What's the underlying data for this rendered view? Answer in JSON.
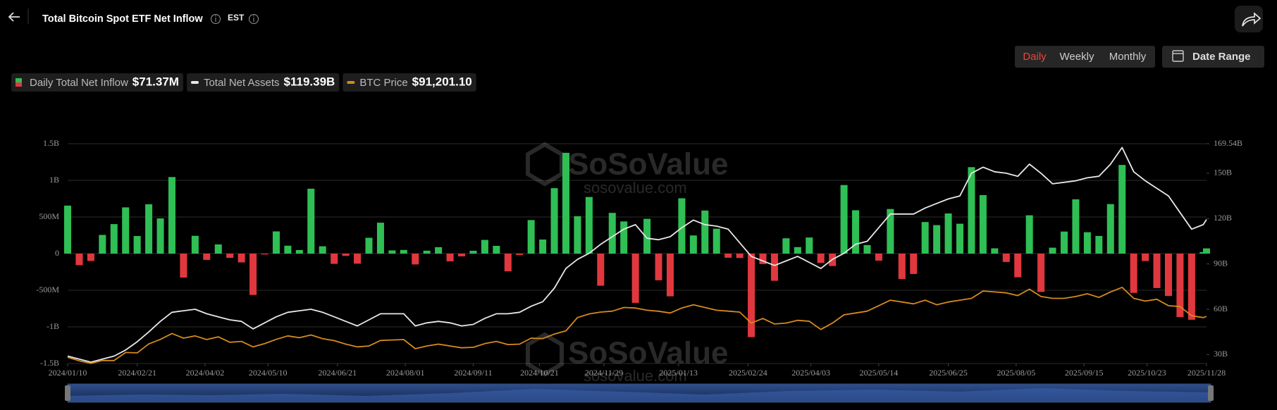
{
  "header": {
    "title": "Total Bitcoin Spot ETF Net Inflow",
    "timezone": "EST"
  },
  "controls": {
    "periods": [
      "Daily",
      "Weekly",
      "Monthly"
    ],
    "active_period": 0,
    "date_range": "Date Range"
  },
  "chart_data": {
    "type": "combo",
    "watermark": [
      "SoSoValue",
      "sosovalue.com"
    ],
    "x": [
      "2024/01/10",
      "2024/01/17",
      "2024/01/24",
      "2024/01/31",
      "2024/02/07",
      "2024/02/14",
      "2024/02/21",
      "2024/02/28",
      "2024/03/06",
      "2024/03/13",
      "2024/03/20",
      "2024/03/27",
      "2024/04/03",
      "2024/04/10",
      "2024/04/17",
      "2024/04/24",
      "2024/05/01",
      "2024/05/08",
      "2024/05/15",
      "2024/05/22",
      "2024/05/29",
      "2024/06/05",
      "2024/06/12",
      "2024/06/19",
      "2024/06/26",
      "2024/07/03",
      "2024/07/10",
      "2024/07/17",
      "2024/07/24",
      "2024/07/31",
      "2024/08/07",
      "2024/08/14",
      "2024/08/21",
      "2024/08/28",
      "2024/09/04",
      "2024/09/11",
      "2024/09/18",
      "2024/09/25",
      "2024/10/02",
      "2024/10/09",
      "2024/10/16",
      "2024/10/23",
      "2024/10/30",
      "2024/11/06",
      "2024/11/13",
      "2024/11/20",
      "2024/11/27",
      "2024/12/04",
      "2024/12/11",
      "2024/12/18",
      "2024/12/25",
      "2025/01/01",
      "2025/01/08",
      "2025/01/15",
      "2025/01/22",
      "2025/01/29",
      "2025/02/05",
      "2025/02/12",
      "2025/02/19",
      "2025/02/26",
      "2025/03/05",
      "2025/03/12",
      "2025/03/19",
      "2025/03/26",
      "2025/04/02",
      "2025/04/09",
      "2025/04/16",
      "2025/04/23",
      "2025/04/30",
      "2025/05/07",
      "2025/05/14",
      "2025/05/21",
      "2025/05/28",
      "2025/06/04",
      "2025/06/11",
      "2025/06/18",
      "2025/06/25",
      "2025/07/02",
      "2025/07/09",
      "2025/07/16",
      "2025/07/23",
      "2025/07/30",
      "2025/08/06",
      "2025/08/13",
      "2025/08/20",
      "2025/08/27",
      "2025/09/03",
      "2025/09/10",
      "2025/09/17",
      "2025/09/24",
      "2025/10/01",
      "2025/10/08",
      "2025/10/15",
      "2025/10/22",
      "2025/10/29",
      "2025/11/05",
      "2025/11/12",
      "2025/11/19",
      "2025/11/26",
      "2025/11/28"
    ],
    "xlim": [
      "2024/01/10",
      "2025/11/28"
    ],
    "xticks": [
      "2024/01/10",
      "2024/02/21",
      "2024/04/02",
      "2024/05/10",
      "2024/06/21",
      "2024/08/01",
      "2024/09/11",
      "2024/10/21",
      "2024/11/29",
      "2025/01/13",
      "2025/02/24",
      "2025/04/03",
      "2025/05/14",
      "2025/06/25",
      "2025/08/05",
      "2025/09/15",
      "2025/10/23",
      "2025/11/28"
    ],
    "ylim": [
      -1500,
      1500
    ],
    "yticks": [
      {
        "value": 1500,
        "label": "1.5B"
      },
      {
        "value": 1000,
        "label": "1B"
      },
      {
        "value": 500,
        "label": "500M"
      },
      0,
      {
        "value": -500,
        "label": "-500M"
      },
      {
        "value": -1000,
        "label": "-1B"
      },
      {
        "value": -1500,
        "label": "-1.5B"
      }
    ],
    "y2lim": [
      24.11,
      169.54
    ],
    "y2ticks": [
      {
        "value": 169.54,
        "label": "169.54B"
      },
      {
        "value": 150,
        "label": "150B"
      },
      {
        "value": 120,
        "label": "120B"
      },
      {
        "value": 90,
        "label": "90B"
      },
      {
        "value": 60,
        "label": "60B"
      },
      {
        "value": 30,
        "label": "30B"
      }
    ],
    "y3lim": [
      39800,
      280000
    ],
    "grid": true,
    "series": [
      {
        "name": "Daily Total Net Inflow",
        "type": "bar",
        "color": "#2fbf55",
        "negative_color": "#e0383e",
        "current_label": "$71.37M",
        "values": [
          655,
          -158,
          -100,
          255,
          403,
          631,
          240,
          673,
          480,
          1045,
          -327,
          243,
          -86,
          125,
          -58,
          -120,
          -564,
          -12,
          303,
          108,
          49,
          886,
          100,
          -140,
          -31,
          -137,
          216,
          422,
          44,
          50,
          -148,
          40,
          88,
          -105,
          -37,
          39,
          187,
          106,
          -242,
          -18,
          458,
          192,
          893,
          1376,
          510,
          773,
          -438,
          556,
          439,
          -672,
          475,
          -364,
          -583,
          755,
          248,
          588,
          340,
          -56,
          -60,
          -1140,
          -143,
          -371,
          209,
          89,
          220,
          -127,
          -170,
          936,
          592,
          117,
          -96,
          609,
          -346,
          -278,
          431,
          389,
          548,
          408,
          1180,
          799,
          72,
          -114,
          -323,
          523,
          -523,
          81,
          301,
          741,
          292,
          241,
          676,
          1210,
          -536,
          -101,
          -470,
          -578,
          -866,
          -903,
          21,
          71.37
        ]
      },
      {
        "name": "Total Net Assets",
        "type": "line",
        "axis": "y2",
        "color": "#e8e8e8",
        "current_label": "$119.39B",
        "values": [
          29,
          27,
          25,
          27,
          29,
          33,
          38.5,
          45,
          52,
          58,
          59,
          60,
          57,
          55,
          53,
          52,
          47,
          51,
          55,
          58,
          59,
          60,
          58,
          55,
          52,
          49,
          53,
          57,
          57,
          57,
          49,
          51,
          52,
          51,
          49,
          50,
          54,
          57,
          57,
          58,
          62,
          65,
          74,
          87,
          93,
          97,
          103,
          108,
          113,
          116,
          107,
          106,
          108,
          114,
          119,
          116,
          115,
          113,
          104,
          95,
          92,
          89,
          92,
          95,
          91,
          87,
          93,
          97,
          103,
          105,
          114,
          123,
          123,
          123,
          127,
          130,
          133,
          135,
          150,
          154,
          151,
          150,
          148,
          156,
          150,
          143,
          144,
          145,
          147,
          148,
          156,
          167,
          151,
          145,
          140,
          135,
          124,
          113,
          116,
          119.39
        ]
      },
      {
        "name": "BTC Price",
        "type": "line",
        "axis": "y3",
        "color": "#d68a1c",
        "current_label": "$91,201.10",
        "values": [
          46600,
          42700,
          40000,
          43100,
          43000,
          51800,
          51400,
          61200,
          66100,
          72600,
          67500,
          70000,
          66000,
          69000,
          63000,
          64000,
          58000,
          61500,
          66200,
          70000,
          68000,
          71000,
          67000,
          64800,
          61000,
          58000,
          59000,
          65000,
          65500,
          66000,
          56000,
          59000,
          61000,
          59000,
          57000,
          57500,
          61500,
          64000,
          60500,
          61000,
          67500,
          67000,
          72000,
          75500,
          90000,
          94000,
          96000,
          97000,
          101000,
          100500,
          98000,
          96900,
          95000,
          100500,
          104000,
          101000,
          98000,
          97000,
          96000,
          84000,
          89000,
          83000,
          84000,
          87000,
          86000,
          77000,
          84000,
          93000,
          95000,
          97000,
          103000,
          109000,
          107000,
          105000,
          109000,
          104000,
          107000,
          109000,
          111000,
          119000,
          118000,
          117000,
          114000,
          121000,
          113000,
          111000,
          111000,
          113000,
          116000,
          112000,
          118000,
          123000,
          111000,
          108000,
          110000,
          103000,
          102000,
          92000,
          90000,
          91201.1
        ]
      }
    ]
  }
}
